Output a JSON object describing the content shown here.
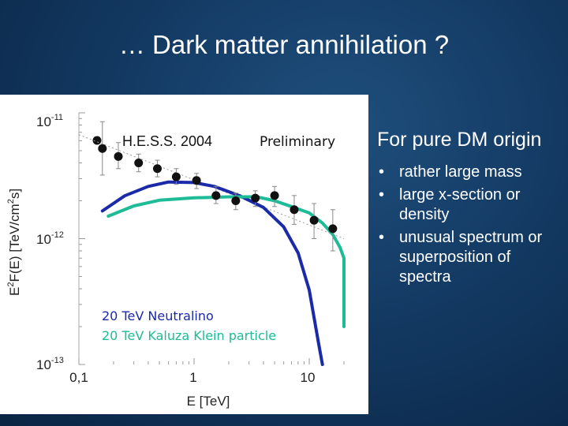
{
  "slide": {
    "title": "… Dark matter annihilation ?"
  },
  "side_text": {
    "heading": "For pure DM origin",
    "bullets": [
      "rather large mass",
      "large x-section or density",
      "unusual spectrum or superposition of spectra"
    ],
    "bullet_symbol": "•"
  },
  "chart_data": {
    "type": "line",
    "log_x": true,
    "log_y": true,
    "xlim": [
      0.1,
      20
    ],
    "ylim": [
      1e-13,
      1e-11
    ],
    "xlabel": "E [TeV]",
    "ylabel_fragments": [
      "E",
      "2",
      "F",
      "(",
      "E",
      ")",
      " [",
      "T",
      "e",
      "V",
      "/",
      "c",
      "m",
      "2",
      "s]"
    ],
    "x_tick_labels": [
      {
        "value": 0.1,
        "label": "0,1"
      },
      {
        "value": 1,
        "label": "1"
      },
      {
        "value": 10,
        "label": "10"
      }
    ],
    "y_tick_labels": [
      {
        "value": 1e-11,
        "base": "10",
        "exp": "-11"
      },
      {
        "value": 1e-12,
        "base": "10",
        "exp": "-12"
      },
      {
        "value": 1e-13,
        "base": "10",
        "exp": "-13"
      }
    ],
    "data_series": {
      "name": "H.E.S.S. 2004",
      "points": [
        {
          "x": 0.16,
          "y": 5.2e-12,
          "y_low": 3.2e-12,
          "y_high": 8.5e-12
        },
        {
          "x": 0.22,
          "y": 4.5e-12,
          "y_low": 3.6e-12,
          "y_high": 5.8e-12
        },
        {
          "x": 0.33,
          "y": 4e-12,
          "y_low": 3.4e-12,
          "y_high": 4.7e-12
        },
        {
          "x": 0.48,
          "y": 3.6e-12,
          "y_low": 3.1e-12,
          "y_high": 4.2e-12
        },
        {
          "x": 0.7,
          "y": 3.1e-12,
          "y_low": 2.7e-12,
          "y_high": 3.6e-12
        },
        {
          "x": 1.05,
          "y": 2.9e-12,
          "y_low": 2.5e-12,
          "y_high": 3.3e-12
        },
        {
          "x": 1.55,
          "y": 2.2e-12,
          "y_low": 1.9e-12,
          "y_high": 2.6e-12
        },
        {
          "x": 2.3,
          "y": 2e-12,
          "y_low": 1.7e-12,
          "y_high": 2.3e-12
        },
        {
          "x": 3.4,
          "y": 2.1e-12,
          "y_low": 1.8e-12,
          "y_high": 2.4e-12
        },
        {
          "x": 5.0,
          "y": 2.2e-12,
          "y_low": 1.8e-12,
          "y_high": 2.6e-12
        },
        {
          "x": 7.4,
          "y": 1.7e-12,
          "y_low": 1.3e-12,
          "y_high": 2.2e-12
        },
        {
          "x": 11.0,
          "y": 1.4e-12,
          "y_low": 1e-12,
          "y_high": 1.9e-12
        },
        {
          "x": 16.0,
          "y": 1.2e-12,
          "y_low": 8e-13,
          "y_high": 1.7e-12
        }
      ]
    },
    "power_law_fit": [
      {
        "x": 0.1,
        "y": 6.7e-12
      },
      {
        "x": 20,
        "y": 1e-12
      }
    ],
    "legend_data_label": "H.E.S.S. 2004",
    "preliminary_label": "Preliminary",
    "models": [
      {
        "name": "20 TeV Neutralino",
        "color": "#1a2aa8",
        "points": [
          {
            "x": 0.16,
            "y": 1.66e-12
          },
          {
            "x": 0.25,
            "y": 2.19e-12
          },
          {
            "x": 0.4,
            "y": 2.6e-12
          },
          {
            "x": 0.6,
            "y": 2.82e-12
          },
          {
            "x": 1.0,
            "y": 2.79e-12
          },
          {
            "x": 1.5,
            "y": 2.6e-12
          },
          {
            "x": 2.5,
            "y": 2.19e-12
          },
          {
            "x": 4.0,
            "y": 1.77e-12
          },
          {
            "x": 6.0,
            "y": 1.24e-12
          },
          {
            "x": 8.0,
            "y": 7.7e-13
          },
          {
            "x": 10.0,
            "y": 3.9e-13
          },
          {
            "x": 12.0,
            "y": 1.5e-13
          },
          {
            "x": 13.0,
            "y": 1e-13
          }
        ]
      },
      {
        "name": "20 TeV Kaluza Klein particle",
        "color": "#1dbb96",
        "points": [
          {
            "x": 0.18,
            "y": 1.51e-12
          },
          {
            "x": 0.3,
            "y": 1.82e-12
          },
          {
            "x": 0.5,
            "y": 2.02e-12
          },
          {
            "x": 1.0,
            "y": 2.11e-12
          },
          {
            "x": 2.0,
            "y": 2.15e-12
          },
          {
            "x": 3.5,
            "y": 2.15e-12
          },
          {
            "x": 5.0,
            "y": 2e-12
          },
          {
            "x": 7.0,
            "y": 1.8e-12
          },
          {
            "x": 10.0,
            "y": 1.6e-12
          },
          {
            "x": 13.0,
            "y": 1.33e-12
          },
          {
            "x": 16.0,
            "y": 1.08e-12
          },
          {
            "x": 18.5,
            "y": 8.5e-13
          },
          {
            "x": 20.0,
            "y": 7e-13
          },
          {
            "x": 20.0,
            "y": 2e-13
          }
        ]
      }
    ]
  }
}
